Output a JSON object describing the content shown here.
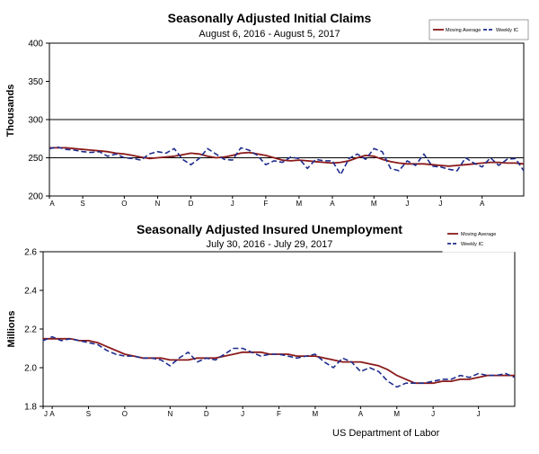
{
  "footer": "US Department of Labor",
  "colors": {
    "moving_average": "#8b1a1a",
    "weekly": "#1f2d8c",
    "axis": "#000000",
    "grid": "#000000"
  },
  "chart_data": [
    {
      "type": "line",
      "title": "Seasonally Adjusted Initial Claims",
      "subtitle": "August 6, 2016  -  August 5, 2017",
      "ylabel": "Thousands",
      "ylim": [
        200,
        400
      ],
      "yticks": [
        200,
        250,
        300,
        350,
        400
      ],
      "ytick_labels": [
        "200",
        "250",
        "300",
        "350",
        "400"
      ],
      "gridlines": [
        250,
        300
      ],
      "month_labels": [
        "A",
        "S",
        "O",
        "N",
        "D",
        "J",
        "F",
        "M",
        "A",
        "M",
        "J",
        "J",
        "A"
      ],
      "month_weeks": [
        0,
        4,
        9,
        13,
        17,
        22,
        26,
        30,
        34,
        39,
        43,
        47,
        52
      ],
      "legend": [
        "Moving Average",
        "Weekly IC"
      ],
      "series": [
        {
          "name": "Moving Average",
          "style": "solid",
          "values": [
            263,
            263,
            263,
            262,
            261,
            260,
            259,
            258,
            256,
            255,
            253,
            251,
            249,
            250,
            251,
            252,
            254,
            256,
            255,
            252,
            250,
            251,
            253,
            256,
            257,
            255,
            253,
            250,
            247,
            246,
            247,
            246,
            245,
            244,
            243,
            244,
            246,
            250,
            253,
            252,
            248,
            245,
            243,
            242,
            242,
            242,
            241,
            240,
            239,
            240,
            241,
            242,
            243,
            244,
            244,
            243,
            243,
            242
          ]
        },
        {
          "name": "Weekly IC",
          "style": "dashed",
          "values": [
            262,
            264,
            261,
            260,
            258,
            257,
            258,
            252,
            255,
            250,
            249,
            247,
            255,
            258,
            256,
            262,
            248,
            241,
            249,
            262,
            255,
            248,
            247,
            263,
            260,
            253,
            241,
            246,
            244,
            251,
            249,
            236,
            248,
            246,
            246,
            228,
            249,
            255,
            248,
            262,
            258,
            236,
            233,
            246,
            240,
            255,
            239,
            238,
            235,
            233,
            250,
            243,
            238,
            250,
            240,
            248,
            249,
            233
          ]
        }
      ]
    },
    {
      "type": "line",
      "title": "Seasonally Adjusted Insured Unemployment",
      "subtitle": "July 30, 2016  -  July 29, 2017",
      "ylabel": "Millions",
      "ylim": [
        1.8,
        2.6
      ],
      "yticks": [
        1.8,
        2.0,
        2.2,
        2.4,
        2.6
      ],
      "ytick_labels": [
        "1.8",
        "2.0",
        "2.2",
        "2.4",
        "2.6"
      ],
      "month_labels": [
        "J",
        "A",
        "S",
        "O",
        "N",
        "D",
        "J",
        "F",
        "M",
        "A",
        "M",
        "J",
        "J"
      ],
      "month_weeks": [
        0,
        1,
        5,
        9,
        14,
        18,
        22,
        26,
        30,
        35,
        39,
        43,
        48
      ],
      "legend": [
        "Moving Average",
        "Weekly IC"
      ],
      "series": [
        {
          "name": "Moving Average",
          "style": "solid",
          "values": [
            2.15,
            2.15,
            2.15,
            2.15,
            2.14,
            2.14,
            2.13,
            2.11,
            2.09,
            2.07,
            2.06,
            2.05,
            2.05,
            2.05,
            2.04,
            2.04,
            2.04,
            2.05,
            2.05,
            2.05,
            2.06,
            2.07,
            2.08,
            2.08,
            2.08,
            2.07,
            2.07,
            2.07,
            2.06,
            2.06,
            2.06,
            2.05,
            2.04,
            2.03,
            2.03,
            2.03,
            2.02,
            2.01,
            1.99,
            1.96,
            1.94,
            1.92,
            1.92,
            1.92,
            1.93,
            1.93,
            1.94,
            1.94,
            1.95,
            1.96,
            1.96,
            1.96,
            1.96
          ]
        },
        {
          "name": "Weekly IC",
          "style": "dashed",
          "values": [
            2.14,
            2.16,
            2.14,
            2.15,
            2.14,
            2.13,
            2.12,
            2.09,
            2.07,
            2.06,
            2.06,
            2.05,
            2.05,
            2.04,
            2.01,
            2.05,
            2.08,
            2.03,
            2.05,
            2.04,
            2.07,
            2.1,
            2.1,
            2.08,
            2.06,
            2.07,
            2.07,
            2.06,
            2.05,
            2.06,
            2.07,
            2.03,
            2.0,
            2.05,
            2.03,
            1.98,
            2.0,
            1.98,
            1.93,
            1.9,
            1.92,
            1.92,
            1.92,
            1.93,
            1.94,
            1.94,
            1.96,
            1.95,
            1.97,
            1.96,
            1.96,
            1.97,
            1.95
          ]
        }
      ]
    }
  ]
}
